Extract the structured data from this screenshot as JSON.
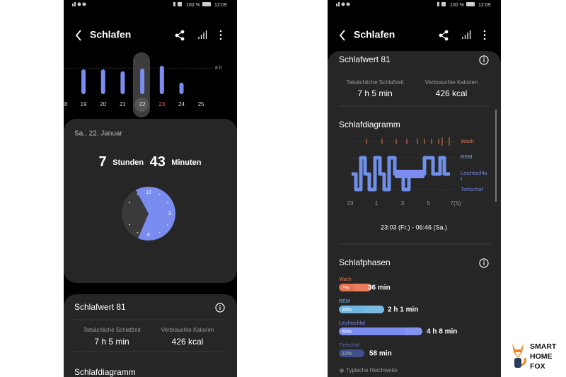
{
  "left_screen": {
    "status": {
      "battery": "100 %",
      "time": "12:09"
    },
    "header": {
      "title": "Schlafen"
    },
    "day_chart": {
      "days": [
        "8",
        "19",
        "20",
        "21",
        "22",
        "23",
        "24",
        "25"
      ],
      "hours": [
        null,
        7.6,
        7.6,
        7.0,
        7.8,
        8.7,
        3.5,
        null
      ],
      "ref": {
        "value": 8,
        "label": "8 h"
      }
    },
    "date": "Sa., 22. Januar",
    "duration": {
      "hours": "7",
      "hours_unit": "Stunden",
      "minutes": "43",
      "minutes_unit": "Minuten"
    },
    "clock": {
      "labels": [
        "12",
        "3",
        "6"
      ],
      "sleep_start": 11.05,
      "sleep_end": 6.77
    },
    "score_card": {
      "title": "Schlafwert 81",
      "stats": [
        {
          "label": "Tatsächliche Schlafzeit",
          "value": "7 h 5 min"
        },
        {
          "label": "Verbrauchte Kalorien",
          "value": "426 kcal"
        }
      ]
    },
    "next_section": "Schlafdiagramm"
  },
  "right_screen": {
    "status": {
      "battery": "100 %",
      "time": "12:09"
    },
    "header": {
      "title": "Schlafen"
    },
    "score_card": {
      "title": "Schlafwert 81",
      "stats": [
        {
          "label": "Tatsächliche Schlafzeit",
          "value": "7 h 5 min"
        },
        {
          "label": "Verbrauchte Kalorien",
          "value": "426 kcal"
        }
      ]
    },
    "diagram": {
      "title": "Schlafdiagramm",
      "stages": [
        "Wach",
        "REM",
        "Leichtschlaf",
        "Tiefschlaf"
      ],
      "x_labels": [
        "23",
        "1",
        "3",
        "5",
        "7(S)"
      ],
      "range": "23:03 (Fr.) - 06:46 (Sa.)"
    },
    "phases": {
      "title": "Schlafphasen",
      "items": [
        {
          "name": "Wach",
          "percent": "7%",
          "duration": "36 min"
        },
        {
          "name": "REM",
          "percent": "26%",
          "duration": "2 h 1 min"
        },
        {
          "name": "Leichtschlaf",
          "percent": "55%",
          "duration": "4 h 8 min"
        },
        {
          "name": "Tiefschlaf",
          "percent": "12%",
          "duration": "58 min"
        }
      ],
      "legend": "Typische Reichweite"
    }
  },
  "logo": {
    "lines": [
      "SMART",
      "HOME",
      "FOX"
    ]
  }
}
